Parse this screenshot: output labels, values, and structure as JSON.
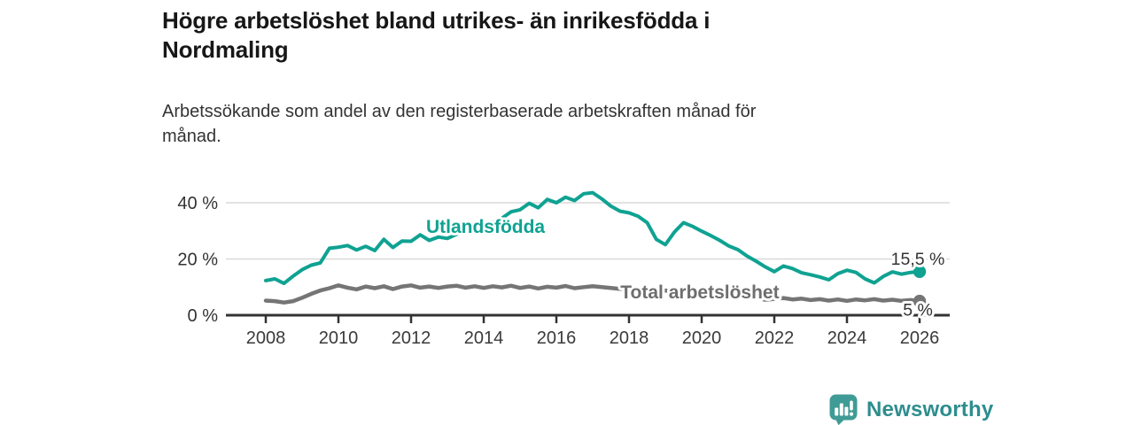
{
  "header": {
    "title_line1": "Högre arbetslöshet bland utrikes- än inrikesfödda i",
    "title_line2": "Nordmaling",
    "subtitle_line1": "Arbetssökande som andel av den registerbaserade arbetskraften månad för",
    "subtitle_line2": "månad."
  },
  "footer": {
    "brand": "Newsworthy",
    "logo_icon": "bar-chart-speech-bubble-icon"
  },
  "colors": {
    "foreign_born_line": "#0fa292",
    "total_line": "#757575",
    "total_label_text": "#6e6e6e",
    "axis": "#333333",
    "gridline": "#d9d9d9",
    "tick_text": "#3a3a3a",
    "logo_teal": "#3f9b95",
    "background": "#ffffff"
  },
  "chart_data": {
    "type": "line",
    "title": "Högre arbetslöshet bland utrikes- än inrikesfödda i Nordmaling",
    "subtitle": "Arbetssökande som andel av den registerbaserade arbetskraften månad för månad.",
    "unit": "%",
    "resolution": "monthly data, values approximated at quarterly steps",
    "x_start": 2008,
    "x_step_years": 0.25,
    "xlim": [
      2007.6,
      2026.8
    ],
    "ylim": [
      0,
      45
    ],
    "grid": "horizontal",
    "legend_position": "inline-labels",
    "xticks": [
      2008,
      2010,
      2012,
      2014,
      2016,
      2018,
      2020,
      2022,
      2024,
      2026
    ],
    "yticks": [
      0,
      20,
      40
    ],
    "ytick_labels": [
      "0 %",
      "20 %",
      "40 %"
    ],
    "series": [
      {
        "id": "utlandsfodda",
        "name": "Utlandsfödda",
        "color": "#0fa292",
        "line_width": 4,
        "end_label": "15,5 %",
        "end_value": 15.5,
        "end_label_dy": -8,
        "values": [
          12.3,
          12.9,
          11.3,
          13.9,
          16.2,
          17.8,
          18.6,
          23.8,
          24.2,
          24.8,
          23.2,
          24.5,
          23.0,
          27.0,
          24.1,
          26.4,
          26.3,
          28.6,
          26.6,
          27.8,
          27.3,
          28.8,
          30.5,
          32.0,
          31.0,
          33.0,
          34.5,
          36.8,
          37.5,
          39.8,
          38.2,
          41.2,
          40.0,
          42.0,
          40.8,
          43.2,
          43.6,
          41.4,
          38.8,
          37.0,
          36.4,
          35.2,
          32.9,
          27.0,
          25.1,
          29.6,
          32.9,
          31.6,
          29.9,
          28.3,
          26.6,
          24.6,
          23.3,
          21.0,
          19.2,
          17.2,
          15.5,
          17.5,
          16.6,
          15.1,
          14.4,
          13.6,
          12.6,
          14.8,
          16.0,
          15.2,
          12.9,
          11.5,
          13.8,
          15.4,
          14.6,
          15.2,
          15.5
        ]
      },
      {
        "id": "total",
        "name": "Total arbetslöshet",
        "color": "#757575",
        "line_width": 4.5,
        "end_label": "5 %",
        "end_value": 5.0,
        "end_label_dy": 16.5,
        "values": [
          5.2,
          5.0,
          4.5,
          5.0,
          6.2,
          7.6,
          8.8,
          9.6,
          10.6,
          9.8,
          9.2,
          10.2,
          9.6,
          10.3,
          9.3,
          10.2,
          10.6,
          9.8,
          10.2,
          9.7,
          10.2,
          10.5,
          9.8,
          10.3,
          9.7,
          10.3,
          9.9,
          10.5,
          9.7,
          10.2,
          9.5,
          10.1,
          9.8,
          10.4,
          9.6,
          10.0,
          10.3,
          10.0,
          9.7,
          9.4,
          9.6,
          9.2,
          8.9,
          8.6,
          8.8,
          8.4,
          8.6,
          9.0,
          9.3,
          8.9,
          8.4,
          7.9,
          7.3,
          6.7,
          6.1,
          5.5,
          5.8,
          6.1,
          5.6,
          5.9,
          5.4,
          5.7,
          5.2,
          5.6,
          5.1,
          5.6,
          5.3,
          5.7,
          5.2,
          5.5,
          5.1,
          5.4,
          5.0
        ]
      }
    ],
    "series_labels": [
      {
        "text": "Utlandsfödda",
        "anchor_year": 2014.05,
        "anchor_value": 29.3,
        "color": "#0fa292"
      },
      {
        "text": "Total arbetslöshet",
        "anchor_year": 2019.95,
        "anchor_value": 6.0,
        "color": "#6e6e6e"
      }
    ]
  }
}
